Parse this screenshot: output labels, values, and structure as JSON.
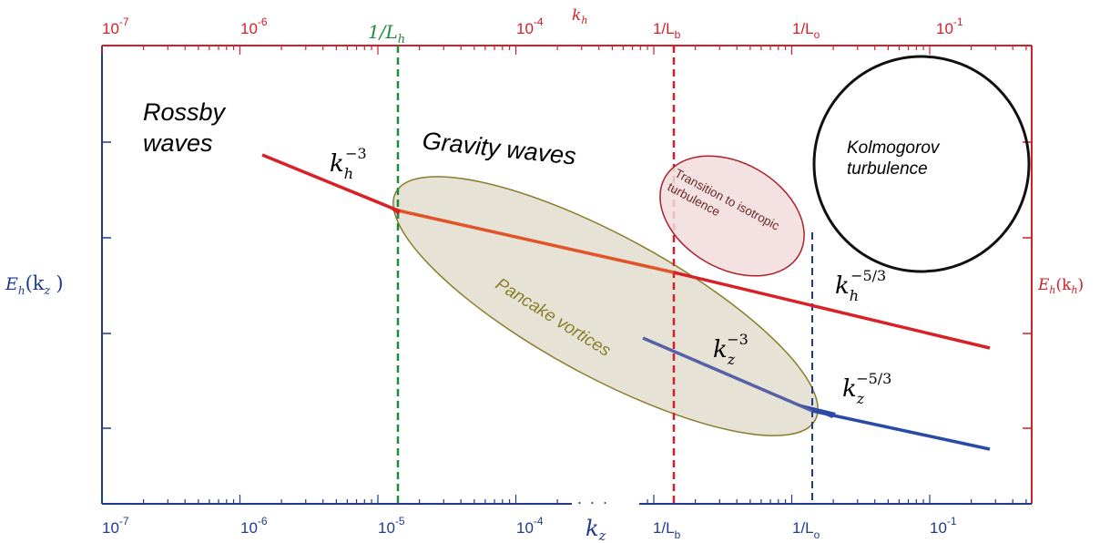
{
  "top_axis": {
    "ticks": [
      {
        "base": "10",
        "exp": "-7"
      },
      {
        "base": "10",
        "exp": "-6"
      },
      {
        "base": "10",
        "exp": "-4"
      },
      {
        "base": "10",
        "exp": "-1"
      }
    ],
    "label": "k",
    "label_sub": "h",
    "markers": [
      {
        "text": "1/L",
        "sub": "h"
      },
      {
        "text": "1/L",
        "sub": "b"
      },
      {
        "text": "1/L",
        "sub": "o"
      }
    ]
  },
  "bottom_axis": {
    "ticks": [
      {
        "base": "10",
        "exp": "-7"
      },
      {
        "base": "10",
        "exp": "-6"
      },
      {
        "base": "10",
        "exp": "-5"
      },
      {
        "base": "10",
        "exp": "-4"
      },
      {
        "base": "10",
        "exp": "-1"
      }
    ],
    "label": "k",
    "label_sub": "z",
    "markers": [
      {
        "text": "1/L",
        "sub": "b"
      },
      {
        "text": "1/L",
        "sub": "o"
      }
    ],
    "break_dots": ". . ."
  },
  "left_axis": {
    "label": "E",
    "label_sub": "h",
    "arg": "(k",
    "arg_sub": "z",
    "close": ")"
  },
  "right_axis": {
    "label": "E",
    "label_sub": "h",
    "arg": "(k",
    "arg_sub": "h",
    "close": ")"
  },
  "regions": {
    "rossby": [
      "Rossby",
      "waves"
    ],
    "gravity": "Gravity waves",
    "kolmogorov": [
      "Kolmogorov",
      "turbulence"
    ],
    "transition": [
      "Transition to isotropic",
      "turbulence"
    ],
    "pancake": "Pancake vortices"
  },
  "slopes": {
    "kh_m3": {
      "base": "k",
      "sub": "h",
      "exp": "−3"
    },
    "kh_m53": {
      "base": "k",
      "sub": "h",
      "exp": "−5/3"
    },
    "kz_m3": {
      "base": "k",
      "sub": "z",
      "exp": "−3"
    },
    "kz_m53": {
      "base": "k",
      "sub": "z",
      "exp": "−5/3"
    }
  },
  "colors": {
    "red": "#d0202a",
    "blue": "#1f3a8f",
    "green": "#1e8a3c",
    "ellipse_fill": "#e6e3d6",
    "ellipse_stroke": "#8a7d2a",
    "transition_fill": "#f2dcdc"
  }
}
